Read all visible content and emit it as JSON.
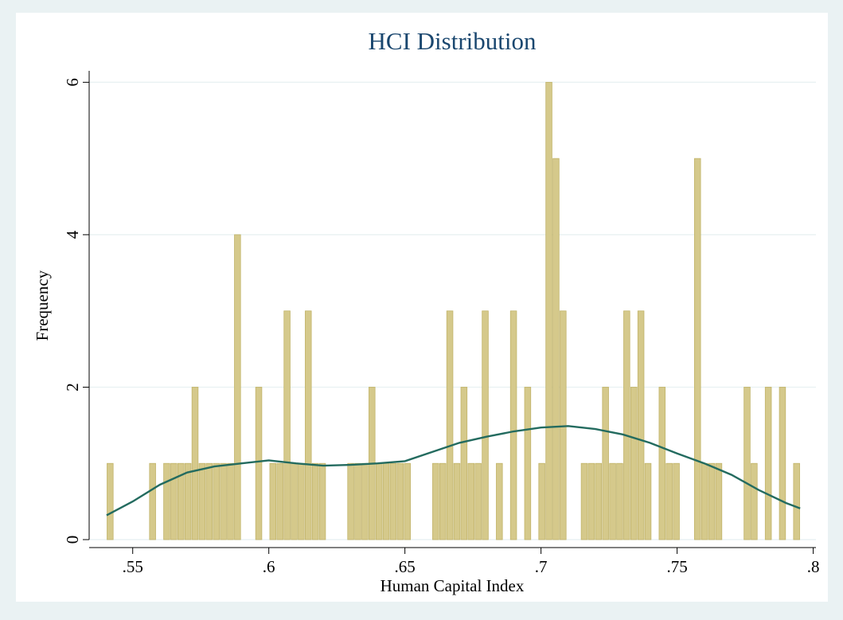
{
  "chart_data": {
    "type": "histogram",
    "title": "HCI Distribution",
    "x_label": "Human Capital Index",
    "y_label": "Frequency",
    "bins": [
      0.5404,
      0.543,
      0.5456,
      0.5482,
      0.5508,
      0.5534,
      0.556,
      0.5586,
      0.5612,
      0.5638,
      0.5664,
      0.569,
      0.5716,
      0.5742,
      0.5768,
      0.5794,
      0.582,
      0.5846,
      0.5872,
      0.5898,
      0.5924,
      0.595,
      0.5976,
      0.6002,
      0.6028,
      0.6054,
      0.608,
      0.6106,
      0.6132,
      0.6158,
      0.6184,
      0.621,
      0.6236,
      0.6262,
      0.6288,
      0.6314,
      0.634,
      0.6366,
      0.6392,
      0.6418,
      0.6444,
      0.647,
      0.6496,
      0.6522,
      0.6548,
      0.6574,
      0.66,
      0.6626,
      0.6652,
      0.6678,
      0.6704,
      0.673,
      0.6756,
      0.6782,
      0.6808,
      0.6834,
      0.686,
      0.6886,
      0.6912,
      0.6938,
      0.6964,
      0.699,
      0.7016,
      0.7042,
      0.7068,
      0.7094,
      0.712,
      0.7146,
      0.7172,
      0.7198,
      0.7224,
      0.725,
      0.7276,
      0.7302,
      0.7328,
      0.7354,
      0.738,
      0.7406,
      0.7432,
      0.7458,
      0.7484,
      0.751,
      0.7536,
      0.7562,
      0.7588,
      0.7614,
      0.764,
      0.7666,
      0.7692,
      0.7718,
      0.7744,
      0.777,
      0.7796,
      0.7822,
      0.7848,
      0.7874,
      0.79,
      0.7926,
      0.7952
    ],
    "values": [
      1,
      0,
      0,
      0,
      0,
      0,
      1,
      0,
      1,
      1,
      1,
      1,
      2,
      1,
      1,
      1,
      1,
      1,
      4,
      0,
      0,
      2,
      0,
      1,
      1,
      3,
      1,
      1,
      3,
      1,
      1,
      0,
      0,
      0,
      1,
      1,
      1,
      2,
      1,
      1,
      1,
      1,
      1,
      0,
      0,
      0,
      1,
      1,
      3,
      1,
      2,
      1,
      1,
      3,
      0,
      1,
      0,
      3,
      0,
      2,
      0,
      1,
      6,
      5,
      3,
      0,
      0,
      1,
      1,
      1,
      2,
      1,
      1,
      3,
      2,
      3,
      1,
      0,
      2,
      1,
      1,
      0,
      0,
      5,
      1,
      1,
      1,
      0,
      0,
      0,
      2,
      1,
      0,
      2,
      0,
      2,
      0,
      1
    ],
    "color": "#d5c98b",
    "edge_color": "#c2b46a",
    "density": {
      "type": "line",
      "color": "#236b5f",
      "x": [
        0.5404,
        0.55,
        0.56,
        0.57,
        0.58,
        0.59,
        0.6,
        0.61,
        0.62,
        0.63,
        0.64,
        0.65,
        0.66,
        0.67,
        0.68,
        0.69,
        0.7,
        0.71,
        0.72,
        0.73,
        0.74,
        0.75,
        0.76,
        0.77,
        0.78,
        0.79,
        0.7952
      ],
      "values": [
        0.32,
        0.5,
        0.72,
        0.88,
        0.96,
        1.0,
        1.04,
        1.0,
        0.97,
        0.98,
        1.0,
        1.03,
        1.15,
        1.27,
        1.35,
        1.42,
        1.47,
        1.49,
        1.45,
        1.38,
        1.27,
        1.13,
        1.0,
        0.85,
        0.65,
        0.48,
        0.41
      ]
    },
    "xlim": [
      0.534,
      0.801
    ],
    "ylim": [
      0,
      6.15
    ],
    "xticks": [
      {
        "value": 0.55,
        "label": ".55"
      },
      {
        "value": 0.6,
        "label": ".6"
      },
      {
        "value": 0.65,
        "label": ".65"
      },
      {
        "value": 0.7,
        "label": ".7"
      },
      {
        "value": 0.75,
        "label": ".75"
      },
      {
        "value": 0.8,
        "label": ".8"
      }
    ],
    "yticks": [
      0,
      2,
      4,
      6
    ],
    "grid": true
  }
}
